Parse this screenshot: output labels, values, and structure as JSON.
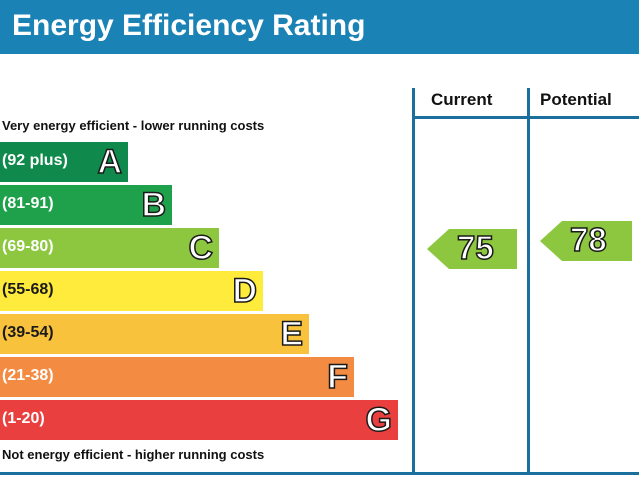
{
  "chart_data": {
    "type": "bar",
    "title": "Energy Efficiency Rating",
    "columns": [
      "Current",
      "Potential"
    ],
    "top_note": "Very energy efficient - lower running costs",
    "bottom_note": "Not energy efficient - higher running costs",
    "bands": [
      {
        "range": "(92 plus)",
        "letter": "A",
        "color": "#0f8a4c"
      },
      {
        "range": "(81-91)",
        "letter": "B",
        "color": "#1ea14a"
      },
      {
        "range": "(69-80)",
        "letter": "C",
        "color": "#8cc73f"
      },
      {
        "range": "(55-68)",
        "letter": "D",
        "color": "#ffeb3b"
      },
      {
        "range": "(39-54)",
        "letter": "E",
        "color": "#f9c23c"
      },
      {
        "range": "(21-38)",
        "letter": "F",
        "color": "#f38b43"
      },
      {
        "range": "(1-20)",
        "letter": "G",
        "color": "#e9403f"
      }
    ],
    "current": {
      "value": 75,
      "band": "C"
    },
    "potential": {
      "value": 78,
      "band": "C"
    }
  },
  "colors": {
    "header": "#1a82b4",
    "frame": "#1a6f9c",
    "arrow": "#8cc73f"
  }
}
